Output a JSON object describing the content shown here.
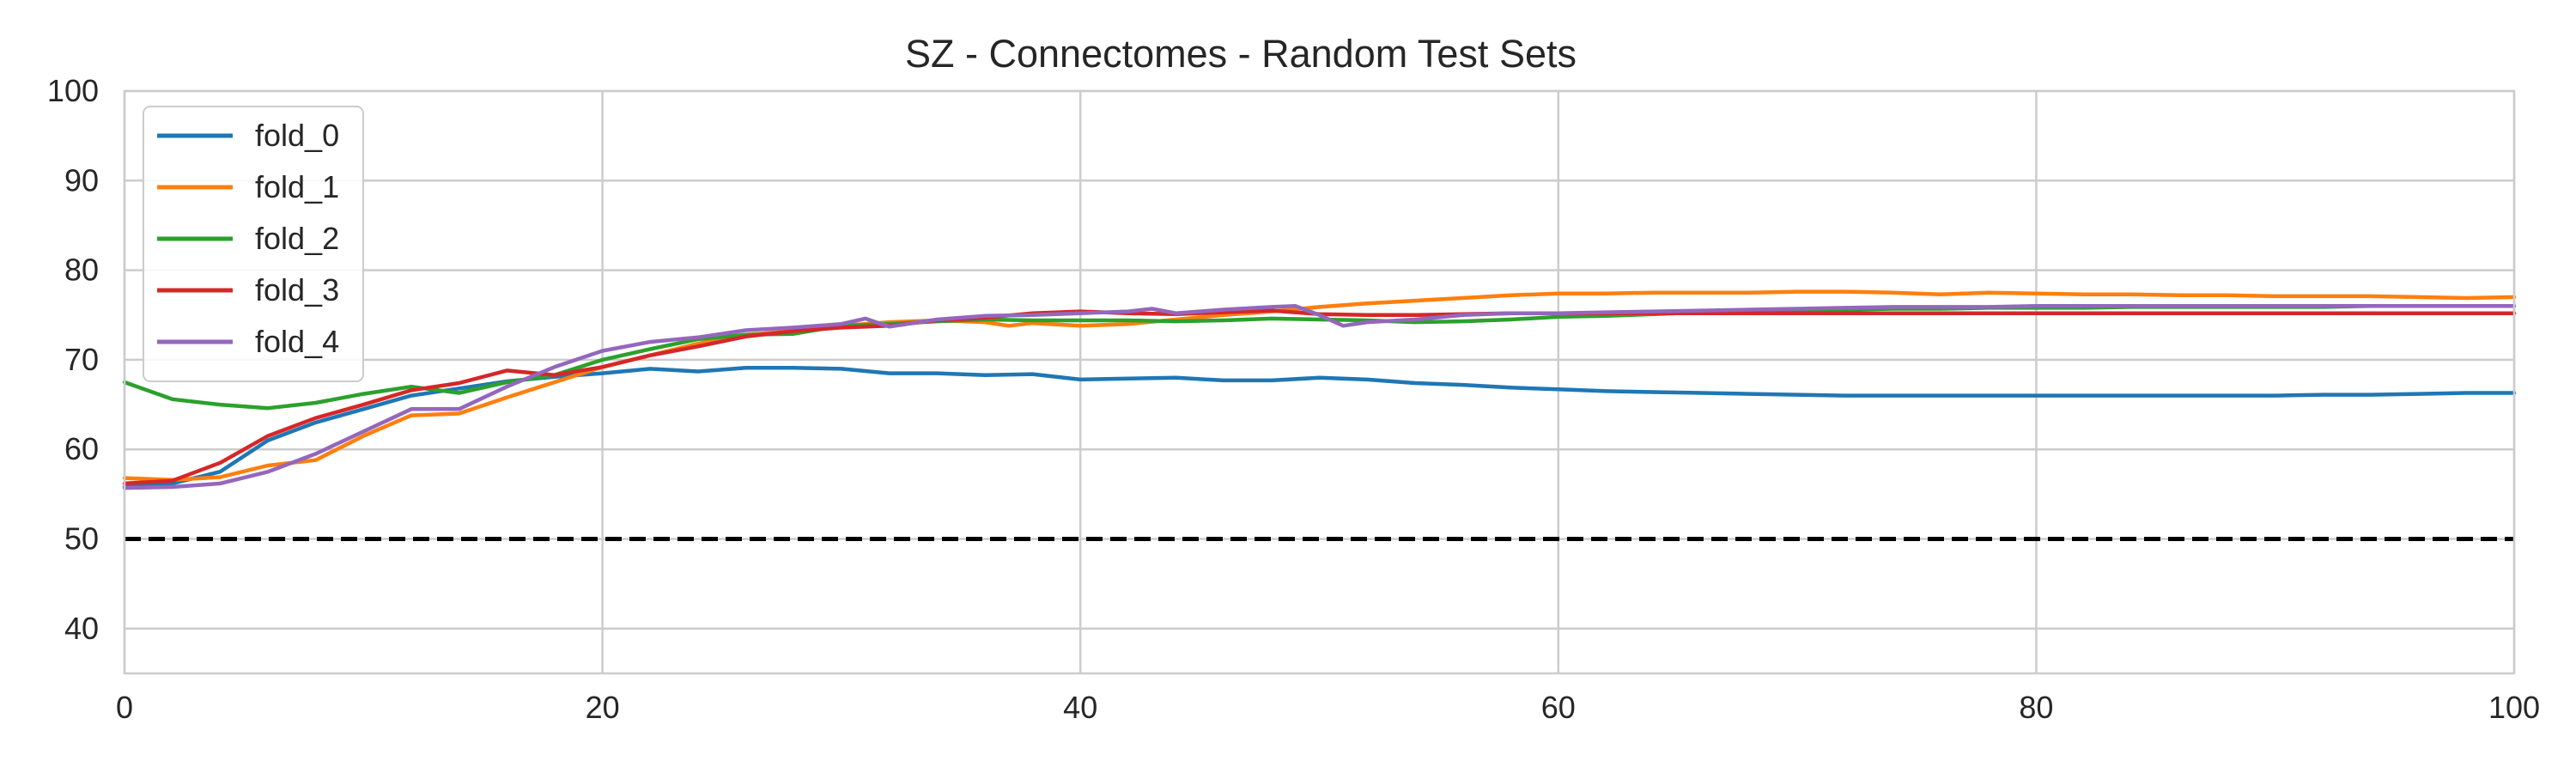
{
  "chart_data": {
    "type": "line",
    "title": "SZ - Connectomes - Random Test Sets",
    "xlabel": "",
    "ylabel": "",
    "xlim": [
      0,
      100
    ],
    "ylim": [
      35,
      100
    ],
    "x_ticks": [
      0,
      20,
      40,
      60,
      80,
      100
    ],
    "y_ticks": [
      40,
      50,
      60,
      70,
      80,
      90,
      100
    ],
    "grid": true,
    "legend_position": "top-left",
    "reference_line": {
      "y": 50,
      "style": "dashed",
      "color": "#000000"
    },
    "series": [
      {
        "name": "fold_0",
        "color": "#1f77b4",
        "points": [
          [
            0,
            55.8
          ],
          [
            2,
            56.2
          ],
          [
            4,
            57.5
          ],
          [
            6,
            61
          ],
          [
            8,
            63
          ],
          [
            10,
            64.5
          ],
          [
            12,
            66
          ],
          [
            14,
            66.8
          ],
          [
            16,
            67.6
          ],
          [
            18,
            68.1
          ],
          [
            20,
            68.5
          ],
          [
            22,
            69
          ],
          [
            24,
            68.7
          ],
          [
            26,
            69.1
          ],
          [
            28,
            69.1
          ],
          [
            30,
            69
          ],
          [
            32,
            68.5
          ],
          [
            34,
            68.5
          ],
          [
            36,
            68.3
          ],
          [
            38,
            68.4
          ],
          [
            40,
            67.8
          ],
          [
            42,
            67.9
          ],
          [
            44,
            68
          ],
          [
            46,
            67.7
          ],
          [
            48,
            67.7
          ],
          [
            50,
            68
          ],
          [
            52,
            67.8
          ],
          [
            54,
            67.4
          ],
          [
            56,
            67.2
          ],
          [
            58,
            66.9
          ],
          [
            60,
            66.7
          ],
          [
            62,
            66.5
          ],
          [
            64,
            66.4
          ],
          [
            66,
            66.3
          ],
          [
            68,
            66.2
          ],
          [
            70,
            66.1
          ],
          [
            72,
            66
          ],
          [
            74,
            66
          ],
          [
            76,
            66
          ],
          [
            78,
            66
          ],
          [
            80,
            66
          ],
          [
            82,
            66
          ],
          [
            84,
            66
          ],
          [
            86,
            66
          ],
          [
            88,
            66
          ],
          [
            90,
            66
          ],
          [
            92,
            66.1
          ],
          [
            94,
            66.1
          ],
          [
            96,
            66.2
          ],
          [
            98,
            66.3
          ],
          [
            100,
            66.3
          ]
        ]
      },
      {
        "name": "fold_1",
        "color": "#ff7f0e",
        "points": [
          [
            0,
            56.8
          ],
          [
            2,
            56.6
          ],
          [
            4,
            56.9
          ],
          [
            6,
            58.2
          ],
          [
            8,
            58.8
          ],
          [
            10,
            61.5
          ],
          [
            12,
            63.8
          ],
          [
            14,
            64
          ],
          [
            16,
            65.8
          ],
          [
            18,
            67.5
          ],
          [
            20,
            69.2
          ],
          [
            22,
            70.5
          ],
          [
            24,
            71.8
          ],
          [
            26,
            72.8
          ],
          [
            28,
            73.2
          ],
          [
            30,
            73.8
          ],
          [
            32,
            74.2
          ],
          [
            34,
            74.4
          ],
          [
            36,
            74.2
          ],
          [
            37,
            73.8
          ],
          [
            38,
            74.1
          ],
          [
            40,
            73.8
          ],
          [
            42,
            74
          ],
          [
            44,
            74.5
          ],
          [
            46,
            75
          ],
          [
            48,
            75.4
          ],
          [
            50,
            75.9
          ],
          [
            52,
            76.3
          ],
          [
            54,
            76.6
          ],
          [
            56,
            76.9
          ],
          [
            58,
            77.2
          ],
          [
            60,
            77.4
          ],
          [
            62,
            77.4
          ],
          [
            64,
            77.5
          ],
          [
            66,
            77.5
          ],
          [
            68,
            77.5
          ],
          [
            70,
            77.6
          ],
          [
            72,
            77.6
          ],
          [
            74,
            77.5
          ],
          [
            76,
            77.3
          ],
          [
            78,
            77.5
          ],
          [
            80,
            77.4
          ],
          [
            82,
            77.3
          ],
          [
            84,
            77.3
          ],
          [
            86,
            77.2
          ],
          [
            88,
            77.2
          ],
          [
            90,
            77.1
          ],
          [
            92,
            77.1
          ],
          [
            94,
            77.1
          ],
          [
            96,
            77
          ],
          [
            98,
            76.9
          ],
          [
            100,
            77
          ]
        ]
      },
      {
        "name": "fold_2",
        "color": "#2ca02c",
        "points": [
          [
            0,
            67.5
          ],
          [
            2,
            65.6
          ],
          [
            4,
            65
          ],
          [
            6,
            64.6
          ],
          [
            8,
            65.2
          ],
          [
            10,
            66.2
          ],
          [
            12,
            67
          ],
          [
            14,
            66.3
          ],
          [
            16,
            67.5
          ],
          [
            18,
            68.3
          ],
          [
            20,
            70
          ],
          [
            22,
            71.2
          ],
          [
            24,
            72.3
          ],
          [
            26,
            72.8
          ],
          [
            28,
            72.9
          ],
          [
            30,
            73.8
          ],
          [
            32,
            74
          ],
          [
            34,
            74.3
          ],
          [
            36,
            74.5
          ],
          [
            38,
            74.4
          ],
          [
            40,
            74.4
          ],
          [
            42,
            74.4
          ],
          [
            44,
            74.3
          ],
          [
            46,
            74.4
          ],
          [
            48,
            74.6
          ],
          [
            50,
            74.5
          ],
          [
            52,
            74.4
          ],
          [
            54,
            74.2
          ],
          [
            56,
            74.3
          ],
          [
            58,
            74.5
          ],
          [
            60,
            74.8
          ],
          [
            62,
            74.9
          ],
          [
            64,
            75.1
          ],
          [
            66,
            75.3
          ],
          [
            68,
            75.4
          ],
          [
            70,
            75.5
          ],
          [
            72,
            75.6
          ],
          [
            74,
            75.7
          ],
          [
            76,
            75.7
          ],
          [
            78,
            75.8
          ],
          [
            80,
            75.8
          ],
          [
            82,
            75.8
          ],
          [
            84,
            75.9
          ],
          [
            86,
            75.9
          ],
          [
            88,
            75.9
          ],
          [
            90,
            75.9
          ],
          [
            92,
            75.9
          ],
          [
            94,
            76
          ],
          [
            96,
            76
          ],
          [
            98,
            76
          ],
          [
            100,
            76
          ]
        ]
      },
      {
        "name": "fold_3",
        "color": "#d62728",
        "points": [
          [
            0,
            56.2
          ],
          [
            2,
            56.5
          ],
          [
            4,
            58.5
          ],
          [
            6,
            61.5
          ],
          [
            8,
            63.5
          ],
          [
            10,
            65
          ],
          [
            12,
            66.6
          ],
          [
            14,
            67.4
          ],
          [
            16,
            68.8
          ],
          [
            18,
            68.3
          ],
          [
            20,
            69.2
          ],
          [
            22,
            70.5
          ],
          [
            24,
            71.5
          ],
          [
            26,
            72.6
          ],
          [
            28,
            73.2
          ],
          [
            30,
            73.6
          ],
          [
            32,
            73.8
          ],
          [
            34,
            74.4
          ],
          [
            36,
            74.7
          ],
          [
            38,
            75.2
          ],
          [
            40,
            75.4
          ],
          [
            42,
            75.2
          ],
          [
            44,
            75.1
          ],
          [
            46,
            75.3
          ],
          [
            48,
            75.5
          ],
          [
            50,
            75.1
          ],
          [
            52,
            75
          ],
          [
            54,
            75
          ],
          [
            56,
            75.1
          ],
          [
            58,
            75.2
          ],
          [
            60,
            75.2
          ],
          [
            62,
            75.2
          ],
          [
            64,
            75.2
          ],
          [
            66,
            75.2
          ],
          [
            68,
            75.2
          ],
          [
            70,
            75.2
          ],
          [
            72,
            75.2
          ],
          [
            74,
            75.2
          ],
          [
            76,
            75.2
          ],
          [
            78,
            75.2
          ],
          [
            80,
            75.2
          ],
          [
            82,
            75.2
          ],
          [
            84,
            75.2
          ],
          [
            86,
            75.2
          ],
          [
            88,
            75.2
          ],
          [
            90,
            75.2
          ],
          [
            92,
            75.2
          ],
          [
            94,
            75.2
          ],
          [
            96,
            75.2
          ],
          [
            98,
            75.2
          ],
          [
            100,
            75.2
          ]
        ]
      },
      {
        "name": "fold_4",
        "color": "#9467bd",
        "points": [
          [
            0,
            55.7
          ],
          [
            2,
            55.8
          ],
          [
            4,
            56.2
          ],
          [
            6,
            57.5
          ],
          [
            8,
            59.5
          ],
          [
            10,
            62
          ],
          [
            12,
            64.5
          ],
          [
            14,
            64.5
          ],
          [
            16,
            67
          ],
          [
            18,
            69.2
          ],
          [
            20,
            71
          ],
          [
            22,
            72
          ],
          [
            24,
            72.5
          ],
          [
            26,
            73.3
          ],
          [
            28,
            73.6
          ],
          [
            30,
            74
          ],
          [
            31,
            74.6
          ],
          [
            32,
            73.7
          ],
          [
            34,
            74.5
          ],
          [
            36,
            74.9
          ],
          [
            38,
            75
          ],
          [
            40,
            75.2
          ],
          [
            42,
            75.4
          ],
          [
            43,
            75.7
          ],
          [
            44,
            75.2
          ],
          [
            46,
            75.6
          ],
          [
            48,
            75.9
          ],
          [
            49,
            76
          ],
          [
            50,
            75
          ],
          [
            51,
            73.8
          ],
          [
            52,
            74.2
          ],
          [
            54,
            74.5
          ],
          [
            56,
            75
          ],
          [
            58,
            75.2
          ],
          [
            60,
            75.2
          ],
          [
            62,
            75.3
          ],
          [
            64,
            75.4
          ],
          [
            66,
            75.5
          ],
          [
            68,
            75.6
          ],
          [
            70,
            75.7
          ],
          [
            72,
            75.8
          ],
          [
            74,
            75.9
          ],
          [
            76,
            75.9
          ],
          [
            78,
            75.9
          ],
          [
            80,
            76
          ],
          [
            82,
            76
          ],
          [
            84,
            76
          ],
          [
            86,
            76
          ],
          [
            88,
            76
          ],
          [
            90,
            76
          ],
          [
            92,
            76
          ],
          [
            94,
            76
          ],
          [
            96,
            76
          ],
          [
            98,
            76
          ],
          [
            100,
            76
          ]
        ]
      }
    ]
  }
}
